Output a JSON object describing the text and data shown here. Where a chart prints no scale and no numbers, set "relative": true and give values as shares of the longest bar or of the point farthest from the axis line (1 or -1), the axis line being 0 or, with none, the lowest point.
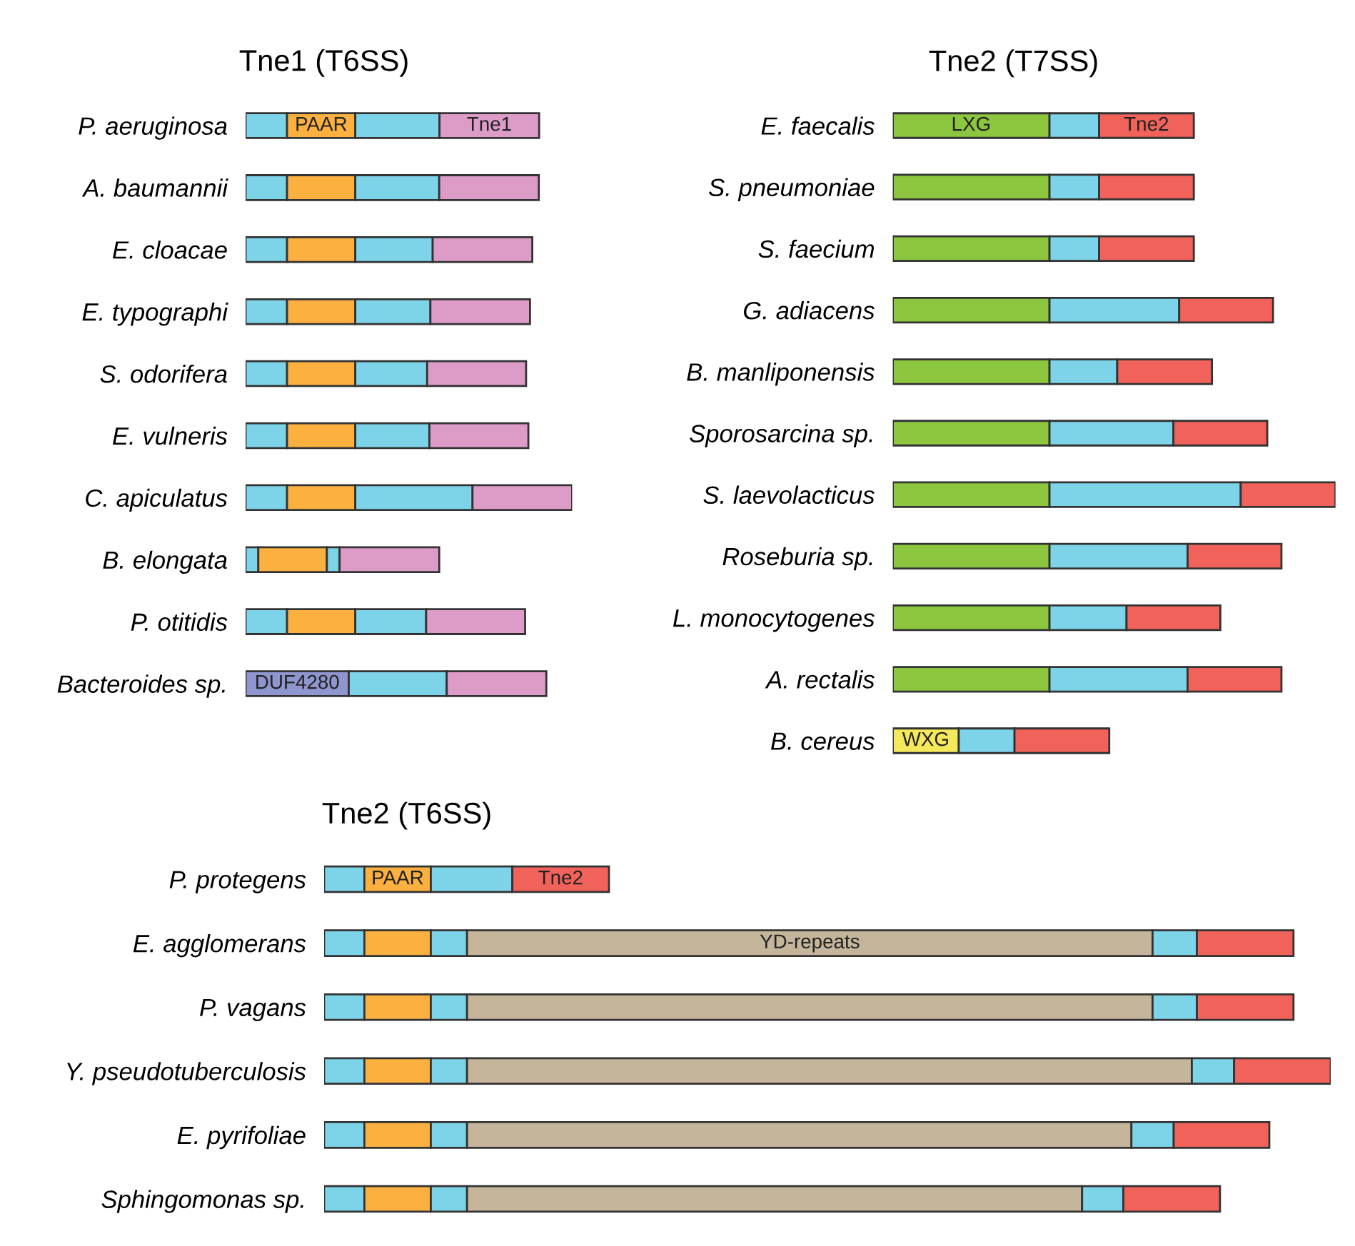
{
  "chart_data": [
    {
      "type": "bar",
      "orientation": "horizontal",
      "stacked": true,
      "relative": true,
      "tick_labels": "y",
      "title": "Tne1 (T6SS)",
      "categories": [
        "P. aeruginosa",
        "A. baumannii",
        "E. cloacae",
        "E. typographi",
        "S. odorifera",
        "E. vulneris",
        "C. apiculatus",
        "B. elongata",
        "P. otitidis",
        "Bacteroides sp."
      ],
      "series": [
        {
          "name": "DUF4280",
          "color": "#8f95cf",
          "values": [
            null,
            null,
            null,
            null,
            null,
            null,
            null,
            null,
            null,
            0.316
          ]
        },
        {
          "color": "#7dd3e8",
          "values": [
            0.127,
            0.127,
            0.127,
            0.127,
            0.127,
            0.127,
            0.127,
            0.039,
            0.127,
            null
          ]
        },
        {
          "name": "PAAR",
          "color": "#fbb040",
          "values": [
            0.209,
            0.209,
            0.209,
            0.209,
            0.209,
            0.209,
            0.209,
            0.21,
            0.209,
            null
          ]
        },
        {
          "color": "#7dd3e8",
          "values": [
            0.258,
            0.257,
            0.237,
            0.23,
            0.22,
            0.227,
            0.359,
            0.039,
            0.217,
            0.3
          ]
        },
        {
          "name": "Tne1",
          "color": "#dd9cc7",
          "values": [
            0.305,
            0.305,
            0.305,
            0.305,
            0.303,
            0.303,
            0.305,
            0.305,
            0.303,
            0.305
          ]
        }
      ]
    },
    {
      "type": "bar",
      "orientation": "horizontal",
      "stacked": true,
      "relative": true,
      "tick_labels": "y",
      "title": "Tne2 (T7SS)",
      "categories": [
        "E. faecalis",
        "S. pneumoniae",
        "S. faecium",
        "G. adiacens",
        "B. manliponensis",
        "Sporosarcina sp.",
        "S. laevolacticus",
        "Roseburia sp.",
        "L. monocytogenes",
        "A. rectalis",
        "B. cereus"
      ],
      "series": [
        {
          "name": "WXG",
          "color": "#f5e85c",
          "values": [
            null,
            null,
            null,
            null,
            null,
            null,
            null,
            null,
            null,
            null,
            0.149
          ]
        },
        {
          "name": "LXG",
          "color": "#8cc63f",
          "values": [
            0.354,
            0.354,
            0.354,
            0.354,
            0.354,
            0.354,
            0.354,
            0.354,
            0.354,
            0.354,
            null
          ]
        },
        {
          "color": "#7dd3e8",
          "values": [
            0.112,
            0.112,
            0.112,
            0.293,
            0.153,
            0.28,
            0.432,
            0.312,
            0.174,
            0.312,
            0.126
          ]
        },
        {
          "name": "Tne2",
          "color": "#f0625a",
          "values": [
            0.214,
            0.214,
            0.214,
            0.212,
            0.214,
            0.212,
            0.214,
            0.212,
            0.212,
            0.212,
            0.214
          ]
        }
      ]
    },
    {
      "type": "bar",
      "orientation": "horizontal",
      "stacked": true,
      "relative": true,
      "tick_labels": "y",
      "title": "Tne2 (T6SS)",
      "categories": [
        "P. protegens",
        "E. agglomerans",
        "P. vagans",
        "Y. pseudotuberculosis",
        "E. pyrifoliae",
        "Sphingomonas sp."
      ],
      "series": [
        {
          "color": "#7dd3e8",
          "values": [
            0.04,
            0.04,
            0.04,
            0.04,
            0.04,
            0.04
          ]
        },
        {
          "name": "PAAR",
          "color": "#fbb040",
          "values": [
            0.066,
            0.066,
            0.066,
            0.066,
            0.066,
            0.066
          ]
        },
        {
          "color": "#7dd3e8",
          "values": [
            0.081,
            0.036,
            0.036,
            0.036,
            0.036,
            0.036
          ]
        },
        {
          "name": "YD-repeats",
          "color": "#c4b59b",
          "values": [
            null,
            0.681,
            0.681,
            0.72,
            0.66,
            0.611
          ]
        },
        {
          "color": "#7dd3e8",
          "values": [
            null,
            0.044,
            0.044,
            0.042,
            0.042,
            0.041
          ]
        },
        {
          "name": "Tne2",
          "color": "#f0625a",
          "values": [
            0.096,
            0.096,
            0.096,
            0.096,
            0.095,
            0.096
          ]
        }
      ]
    }
  ]
}
